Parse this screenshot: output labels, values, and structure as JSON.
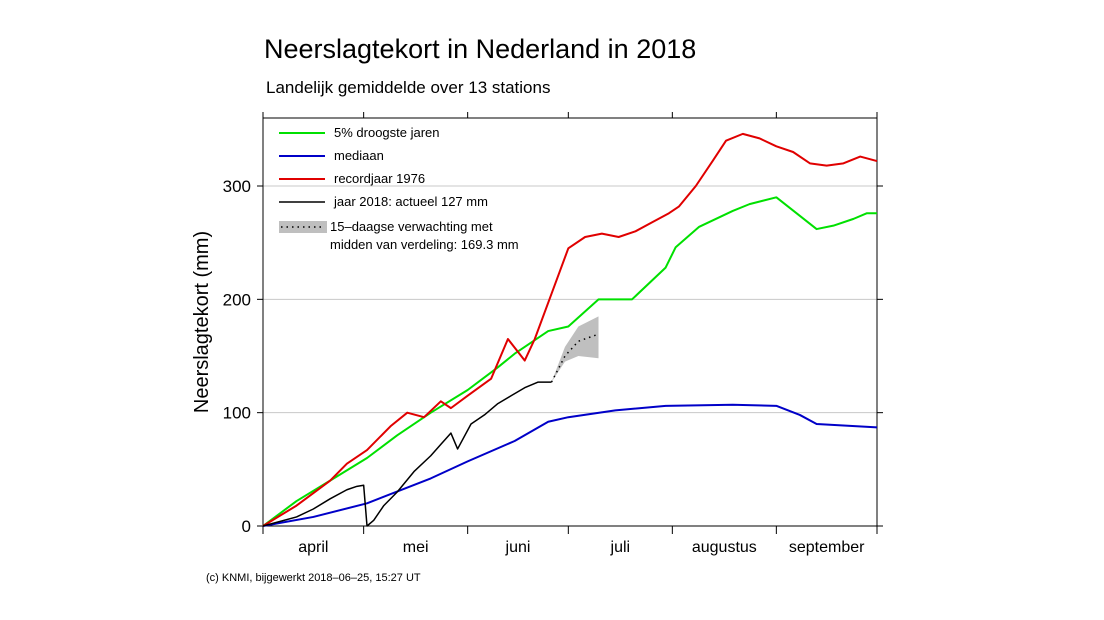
{
  "chart_data": {
    "type": "line",
    "title": "Neerslagtekort in Nederland in 2018",
    "subtitle": "Landelijk gemiddelde over 13 stations",
    "ylabel": "Neerslagtekort (mm)",
    "xlabel": "",
    "ylim": [
      0,
      360
    ],
    "yticks": [
      0,
      100,
      200,
      300
    ],
    "x_unit": "dagen sinds 1 april",
    "xlim": [
      0,
      183
    ],
    "months": [
      "april",
      "mei",
      "juni",
      "juli",
      "augustus",
      "september"
    ],
    "grid": "horizontal",
    "legend_position": "top-left",
    "series": [
      {
        "name": "5% droogste jaren",
        "color": "#00e000",
        "x": [
          0,
          10,
          20,
          31,
          40,
          50,
          61,
          70,
          75,
          85,
          91,
          100,
          110,
          120,
          123,
          130,
          140,
          145,
          153,
          165,
          170,
          176,
          180,
          183
        ],
        "y": [
          0,
          22,
          40,
          60,
          80,
          100,
          120,
          140,
          152,
          172,
          176,
          200,
          200,
          228,
          246,
          264,
          278,
          284,
          290,
          262,
          265,
          271,
          276,
          276
        ]
      },
      {
        "name": "mediaan",
        "color": "#0000c8",
        "x": [
          0,
          15,
          31,
          50,
          61,
          75,
          85,
          91,
          105,
          120,
          140,
          153,
          160,
          165,
          183
        ],
        "y": [
          0,
          8,
          20,
          42,
          57,
          75,
          92,
          96,
          102,
          106,
          107,
          106,
          98,
          90,
          87
        ]
      },
      {
        "name": "recordjaar 1976",
        "color": "#e00000",
        "x": [
          0,
          10,
          20,
          25,
          31,
          38,
          43,
          48,
          53,
          56,
          61,
          68,
          73,
          78,
          81,
          86,
          91,
          96,
          101,
          106,
          111,
          116,
          121,
          124,
          129,
          134,
          138,
          143,
          148,
          153,
          158,
          163,
          168,
          173,
          178,
          183
        ],
        "y": [
          0,
          18,
          40,
          55,
          67,
          88,
          100,
          96,
          110,
          104,
          115,
          130,
          165,
          146,
          165,
          205,
          245,
          255,
          258,
          255,
          260,
          268,
          276,
          282,
          300,
          322,
          340,
          346,
          342,
          335,
          330,
          320,
          318,
          320,
          326,
          322
        ]
      },
      {
        "name": "jaar 2018: actueel 127 mm",
        "color": "#000000",
        "x": [
          0,
          5,
          10,
          15,
          20,
          25,
          28,
          30,
          31,
          33,
          36,
          40,
          45,
          50,
          53,
          56,
          58,
          62,
          66,
          70,
          74,
          78,
          82,
          86
        ],
        "y": [
          0,
          4,
          8,
          15,
          24,
          32,
          35,
          36,
          0,
          5,
          18,
          30,
          48,
          62,
          72,
          82,
          68,
          90,
          98,
          108,
          115,
          122,
          127,
          127
        ]
      }
    ],
    "forecast": {
      "name": "15–daagse verwachting met",
      "name_line2": "midden van verdeling: 169.3 mm",
      "x": [
        86,
        90,
        94,
        100
      ],
      "y": [
        127,
        150,
        163,
        169.3
      ],
      "band_upper": [
        127,
        158,
        176,
        185
      ],
      "band_lower": [
        127,
        145,
        150,
        148
      ]
    }
  },
  "footer": "(c) KNMI, bijgewerkt 2018–06–25, 15:27 UT"
}
